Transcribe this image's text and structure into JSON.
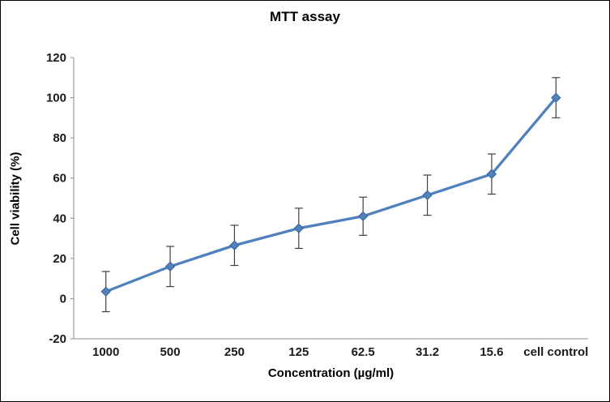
{
  "chart_data": {
    "type": "line",
    "title": "MTT assay",
    "xlabel": "Concentration (µg/ml)",
    "ylabel": "Cell viability (%)",
    "categories": [
      "1000",
      "500",
      "250",
      "125",
      "62.5",
      "31.2",
      "15.6",
      "cell control"
    ],
    "values": [
      3.5,
      16,
      26.5,
      35,
      41,
      51.5,
      62,
      100
    ],
    "errors": [
      10,
      10,
      10,
      10,
      9.5,
      10,
      10,
      10
    ],
    "ylim": [
      -20,
      120
    ],
    "ytick_step": 20,
    "grid": false,
    "legend": "none",
    "line_color": "#4F81BD",
    "marker": "diamond",
    "marker_stroke": "#3A6596",
    "error_color": "#404040",
    "axis_color": "#8C8C8C",
    "text_color": "#1A1A1A"
  }
}
